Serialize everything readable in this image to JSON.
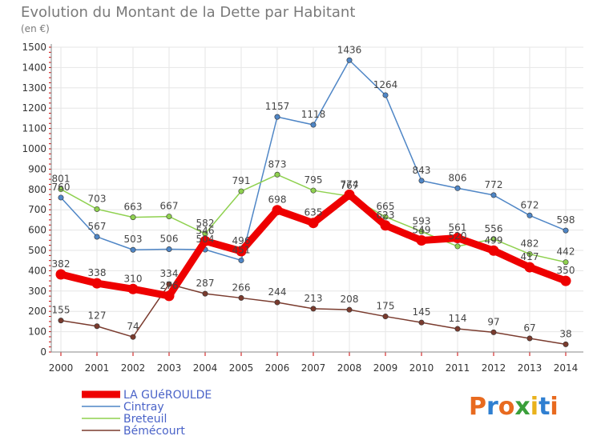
{
  "chart_data": {
    "type": "line",
    "title": "Evolution du Montant de la Dette par Habitant",
    "ylabel": "(en €)",
    "xlabel": "",
    "ylim": [
      0,
      1500
    ],
    "yticks": [
      0,
      100,
      200,
      300,
      400,
      500,
      600,
      700,
      800,
      900,
      1000,
      1100,
      1200,
      1300,
      1400,
      1500
    ],
    "categories": [
      "2000",
      "2001",
      "2002",
      "2003",
      "2004",
      "2005",
      "2006",
      "2007",
      "2008",
      "2009",
      "2010",
      "2011",
      "2012",
      "2013",
      "2014"
    ],
    "grid": true,
    "legend_position": "bottom-left",
    "series": [
      {
        "name": "Bémécourt",
        "color": "#7a3b2e",
        "values": [
          155,
          127,
          74,
          334,
          287,
          266,
          244,
          213,
          208,
          175,
          145,
          114,
          97,
          67,
          38
        ]
      },
      {
        "name": "Cintray",
        "color": "#4f86c6",
        "values": [
          760,
          567,
          503,
          506,
          504,
          451,
          1157,
          1118,
          1436,
          1264,
          843,
          806,
          772,
          672,
          598
        ]
      },
      {
        "name": "Breteuil",
        "color": "#8fd14f",
        "values": [
          801,
          703,
          663,
          667,
          582,
          791,
          873,
          795,
          767,
          665,
          593,
          520,
          556,
          482,
          442
        ]
      },
      {
        "name": "LA GUéROULDE",
        "color": "#ee0000",
        "values": [
          382,
          338,
          310,
          276,
          546,
          496,
          698,
          635,
          774,
          623,
          549,
          561,
          499,
          417,
          350
        ]
      }
    ]
  },
  "legend": {
    "items": [
      {
        "label": "LA GUéROULDE",
        "color": "#ee0000"
      },
      {
        "label": "Cintray",
        "color": "#4f86c6"
      },
      {
        "label": "Breteuil",
        "color": "#8fd14f"
      },
      {
        "label": "Bémécourt",
        "color": "#7a3b2e"
      }
    ]
  },
  "brand": {
    "text": "Proxiti"
  }
}
